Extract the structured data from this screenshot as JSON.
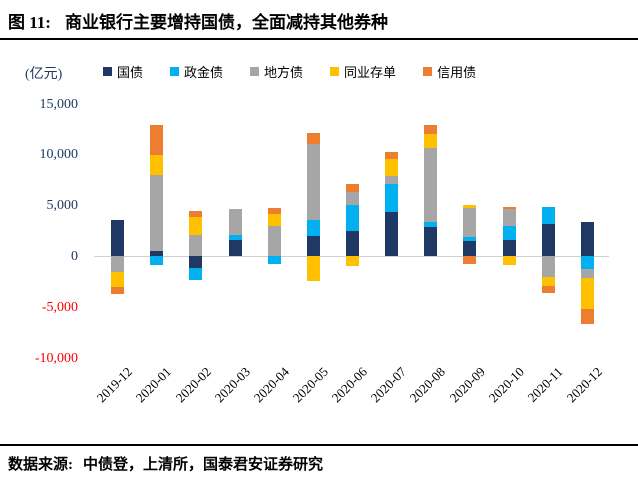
{
  "page": {
    "title_prefix": "图 11:",
    "title": "商业银行主要增持国债，全面减持其他券种",
    "source_label": "数据来源:",
    "source_text": "中债登，上清所，国泰君安证券研究"
  },
  "chart_data": {
    "type": "bar",
    "stacked": true,
    "title": "商业银行主要增持国债，全面减持其他券种",
    "unit_label": "(亿元)",
    "legend_position": "top",
    "grid": false,
    "ylim": [
      -10000,
      15000
    ],
    "y_ticks": [
      {
        "label": "15,000",
        "value": 15000
      },
      {
        "label": "10,000",
        "value": 10000
      },
      {
        "label": "5,000",
        "value": 5000
      },
      {
        "label": "0",
        "value": 0
      },
      {
        "label": "-5,000",
        "value": -5000
      },
      {
        "label": "-10,000",
        "value": -10000
      }
    ],
    "axis_colors": {
      "positive_tick": "#1f3864",
      "negative_tick": "#ff0000"
    },
    "zero_line_color": "#cfcfcf",
    "categories": [
      "2019-12",
      "2020-01",
      "2020-02",
      "2020-03",
      "2020-04",
      "2020-05",
      "2020-06",
      "2020-07",
      "2020-08",
      "2020-09",
      "2020-10",
      "2020-11",
      "2020-12"
    ],
    "series": [
      {
        "name": "国债",
        "key": "guozhai",
        "color": "#1f3864",
        "values": [
          3600,
          500,
          -1150,
          1650,
          0,
          2000,
          2500,
          4400,
          2850,
          1500,
          1600,
          3200,
          3400
        ]
      },
      {
        "name": "政金债",
        "key": "zhengjinzhai",
        "color": "#00b0f0",
        "values": [
          0,
          -800,
          -1200,
          450,
          -750,
          1600,
          2600,
          2700,
          500,
          400,
          1350,
          1700,
          -1200
        ]
      },
      {
        "name": "地方债",
        "key": "difangzhai",
        "color": "#a6a6a6",
        "values": [
          -1500,
          7500,
          2100,
          2600,
          3000,
          7500,
          1200,
          800,
          7300,
          2900,
          1700,
          -2000,
          -900
        ]
      },
      {
        "name": "同业存单",
        "key": "tongyecundan",
        "color": "#ffc000",
        "values": [
          -1500,
          2000,
          1800,
          0,
          1150,
          -2400,
          -900,
          1700,
          1400,
          300,
          -800,
          -950,
          -3100
        ]
      },
      {
        "name": "信用债",
        "key": "xinyongzhai",
        "color": "#ed7d31",
        "values": [
          -700,
          2900,
          550,
          0,
          600,
          1050,
          800,
          700,
          900,
          -700,
          250,
          -650,
          -1500
        ]
      }
    ]
  }
}
